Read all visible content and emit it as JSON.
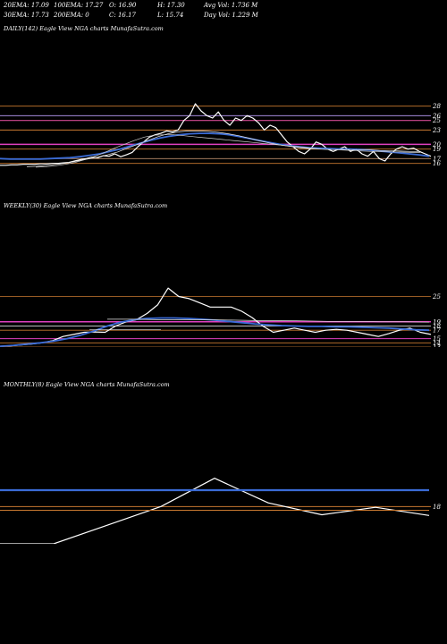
{
  "header": {
    "row1": [
      "20EMA: 17.09",
      "100EMA: 17.27",
      "O: 16.90",
      "H: 17.30",
      "Avg Vol: 1.736  M"
    ],
    "row2": [
      "30EMA: 17.73",
      "200EMA: 0",
      "C: 16.17",
      "L: 15.74",
      "Day Vol: 1.229 M"
    ]
  },
  "colors": {
    "background": "#000000",
    "price": "#ffffff",
    "ema_blue": "#3a6bd6",
    "ema_pink": "#e040c0",
    "level_orange": "#c87830",
    "ema_white": "#e8e8e8"
  },
  "chart_data": [
    {
      "type": "line",
      "title": "DAILY(142) Eagle  View  NGA charts MunafaSutra.com",
      "yticks": [
        "28",
        "26",
        "25",
        "23",
        "20",
        "19",
        "17",
        "16"
      ],
      "ylim": [
        15,
        30
      ],
      "series": [
        {
          "values": [
            15.6,
            15.6,
            15.7,
            15.7,
            15.8,
            15.8,
            15.8,
            15.9,
            15.9,
            16.0,
            16.0,
            16.1,
            16.2,
            16.5,
            16.8,
            17.0,
            17.3,
            17.2,
            17.6,
            17.5,
            18.0,
            17.4,
            17.8,
            18.3,
            19.5,
            20.5,
            21.5,
            22.0,
            22.3,
            22.8,
            22.6,
            23.0,
            25.0,
            26.0,
            28.5,
            27.0,
            26.0,
            25.5,
            26.8,
            25.0,
            24.0,
            25.5,
            25.0,
            26.0,
            25.5,
            24.5,
            23.0,
            24.0,
            23.5,
            22.0,
            20.5,
            19.5,
            18.5,
            18.0,
            19.0,
            20.5,
            20.0,
            19.0,
            18.5,
            19.0,
            19.5,
            18.5,
            19.0,
            18.0,
            17.5,
            18.5,
            17.0,
            16.5,
            18.0,
            19.0,
            19.5,
            19.0,
            19.2,
            18.5,
            18.0,
            17.5
          ]
        },
        {
          "values": [
            17.0,
            16.9,
            16.9,
            16.9,
            16.9,
            17.0,
            17.1,
            17.2,
            17.4,
            17.7,
            18.0,
            18.5,
            19.0,
            19.6,
            20.2,
            20.8,
            21.3,
            21.7,
            22.0,
            22.2,
            22.3,
            22.3,
            22.2,
            22.0,
            21.6,
            21.2,
            20.8,
            20.4,
            20.0,
            19.7,
            19.5,
            19.3,
            19.2,
            19.1,
            19.0,
            19.0,
            18.9,
            18.8,
            18.6,
            18.4,
            18.2,
            18.0,
            17.8,
            17.5
          ]
        },
        {
          "values": [
            15.3,
            15.4,
            15.6,
            15.8,
            16.1,
            16.5,
            16.9,
            17.3,
            17.8,
            18.4,
            19.2,
            20.0,
            20.8,
            21.6,
            22.2,
            22.6,
            22.8,
            22.8,
            22.7,
            22.5,
            22.2,
            21.8,
            21.3,
            20.8,
            20.3,
            19.9,
            19.6,
            19.3,
            19.1,
            19.0,
            18.9,
            18.9,
            18.9,
            18.8,
            18.8,
            18.7,
            18.7,
            18.6,
            18.5,
            18.5
          ]
        },
        {
          "values": [
            15.2,
            15.3,
            15.5,
            15.8,
            16.2,
            16.8,
            17.5,
            18.3,
            19.2,
            20.0,
            20.8,
            21.5,
            21.9,
            22.0,
            22.0,
            21.8,
            21.6,
            21.4,
            21.2,
            21.0,
            20.8,
            20.6,
            20.4,
            20.2,
            20.0,
            19.8,
            19.6,
            19.4,
            19.2,
            19.0,
            18.9,
            18.8,
            18.7,
            18.6,
            18.5,
            18.5,
            18.4,
            18.4,
            18.3,
            18.3
          ]
        }
      ]
    },
    {
      "type": "line",
      "title": "WEEKLY(30) Eagle  View  NGA charts MunafaSutra.com",
      "yticks": [
        "25",
        "19",
        "18",
        "17",
        "15",
        "14",
        "13"
      ],
      "ylim": [
        13,
        30
      ],
      "series": [
        {
          "values": [
            13.2,
            13.3,
            13.5,
            13.7,
            14.0,
            14.5,
            15.5,
            16.0,
            16.5,
            16.6,
            16.5,
            18.0,
            19.0,
            19.5,
            21.0,
            23.0,
            27.0,
            25.0,
            24.5,
            23.5,
            22.5,
            22.5,
            22.5,
            21.5,
            20.0,
            18.0,
            16.5,
            17.0,
            17.5,
            17.0,
            16.5,
            17.0,
            17.2,
            17.0,
            16.5,
            16.0,
            15.5,
            16.2,
            17.0,
            17.5,
            16.5,
            16.0
          ]
        },
        {
          "values": [
            13.2,
            13.4,
            13.7,
            14.0,
            14.4,
            15.0,
            15.8,
            16.8,
            18.0,
            18.9,
            19.5,
            19.8,
            19.9,
            19.9,
            19.8,
            19.6,
            19.4,
            19.1,
            18.8,
            18.5,
            18.3,
            18.1,
            18.0,
            17.9,
            17.9,
            17.8,
            17.8,
            17.7,
            17.6,
            17.5,
            17.3,
            17.1,
            17.0
          ]
        },
        {
          "values": [
            19.6,
            19.6,
            19.5,
            19.5,
            19.5,
            19.4,
            19.3,
            19.3,
            19.2,
            19.1,
            19.1,
            19.0,
            19.0,
            18.9
          ]
        },
        {
          "values": [
            17.1,
            17.1,
            17.1,
            17.1,
            17.1
          ]
        }
      ]
    },
    {
      "type": "line",
      "title": "MONTHLY(8) Eagle  View  NGA charts MunafaSutra.com",
      "yticks": [
        "18"
      ],
      "ylim": [
        13,
        25
      ],
      "series": [
        {
          "values": [
            13.0,
            13.0,
            15.5,
            18.0,
            21.8,
            18.5,
            16.9,
            17.9,
            16.8
          ]
        },
        {
          "values": [
            20.2,
            20.2
          ]
        },
        {
          "values": [
            17.5,
            17.5
          ]
        }
      ]
    }
  ]
}
